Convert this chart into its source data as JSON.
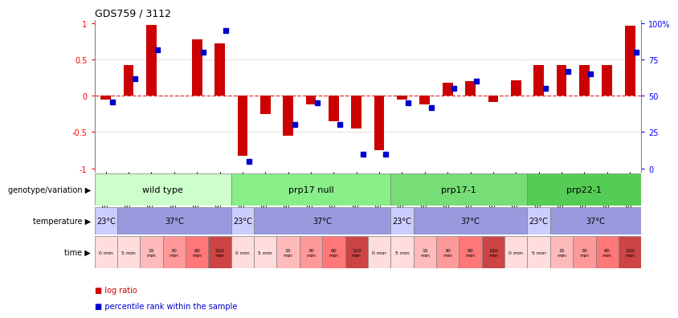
{
  "title": "GDS759 / 3112",
  "samples": [
    "GSM30876",
    "GSM30877",
    "GSM30878",
    "GSM30879",
    "GSM30880",
    "GSM30881",
    "GSM30882",
    "GSM30883",
    "GSM30884",
    "GSM30885",
    "GSM30886",
    "GSM30887",
    "GSM30888",
    "GSM30889",
    "GSM30890",
    "GSM30891",
    "GSM30892",
    "GSM30893",
    "GSM30894",
    "GSM30895",
    "GSM30896",
    "GSM30897",
    "GSM30898",
    "GSM30899"
  ],
  "log_ratio": [
    -0.05,
    0.42,
    0.98,
    0.0,
    0.78,
    0.72,
    -0.83,
    -0.25,
    -0.55,
    -0.12,
    -0.35,
    -0.45,
    -0.75,
    -0.05,
    -0.12,
    0.18,
    0.2,
    -0.08,
    0.22,
    0.42,
    0.43,
    0.42,
    0.42,
    0.97
  ],
  "percentile_scaled": [
    -0.08,
    0.24,
    0.64,
    null,
    0.6,
    0.9,
    -0.9,
    null,
    -0.4,
    -0.1,
    -0.4,
    -0.8,
    -0.8,
    -0.1,
    -0.16,
    0.1,
    0.2,
    null,
    null,
    0.1,
    0.34,
    0.3,
    null,
    0.6
  ],
  "genotype_groups": [
    {
      "label": "wild type",
      "start": 0,
      "end": 6,
      "color": "#ccffcc"
    },
    {
      "label": "prp17 null",
      "start": 6,
      "end": 13,
      "color": "#88ee88"
    },
    {
      "label": "prp17-1",
      "start": 13,
      "end": 19,
      "color": "#77dd77"
    },
    {
      "label": "prp22-1",
      "start": 19,
      "end": 24,
      "color": "#55cc55"
    }
  ],
  "temperature_groups": [
    {
      "label": "23°C",
      "start": 0,
      "end": 1,
      "color": "#ccccff"
    },
    {
      "label": "37°C",
      "start": 1,
      "end": 6,
      "color": "#9999dd"
    },
    {
      "label": "23°C",
      "start": 6,
      "end": 7,
      "color": "#ccccff"
    },
    {
      "label": "37°C",
      "start": 7,
      "end": 13,
      "color": "#9999dd"
    },
    {
      "label": "23°C",
      "start": 13,
      "end": 14,
      "color": "#ccccff"
    },
    {
      "label": "37°C",
      "start": 14,
      "end": 19,
      "color": "#9999dd"
    },
    {
      "label": "23°C",
      "start": 19,
      "end": 20,
      "color": "#ccccff"
    },
    {
      "label": "37°C",
      "start": 20,
      "end": 24,
      "color": "#9999dd"
    }
  ],
  "time_labels": [
    "0 min",
    "5 min",
    "15\nmin",
    "30\nmin",
    "60\nmin",
    "120\nmin"
  ],
  "time_colors": [
    "#ffdddd",
    "#ffdddd",
    "#ffbbbb",
    "#ff9999",
    "#ff7777",
    "#cc4444"
  ],
  "bar_color": "#cc0000",
  "dot_color": "#0000cc",
  "hline_red_color": "#cc0000",
  "dotted_color": "#888888",
  "row_labels": [
    "genotype/variation ▶",
    "temperature ▶",
    "time ▶"
  ],
  "legend_items": [
    {
      "color": "#cc0000",
      "label": "log ratio"
    },
    {
      "color": "#0000cc",
      "label": "percentile rank within the sample"
    }
  ]
}
